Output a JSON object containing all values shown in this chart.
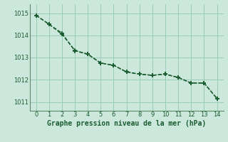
{
  "title": "Graphe pression niveau de la mer (hPa)",
  "background_color": "#cce8dc",
  "plot_bg_color": "#cce8dc",
  "grid_color": "#99ccb8",
  "line_color": "#1a5c30",
  "spine_color": "#5a8a6a",
  "xlim": [
    -0.5,
    14.5
  ],
  "ylim": [
    1010.6,
    1015.4
  ],
  "yticks": [
    1011,
    1012,
    1013,
    1014,
    1015
  ],
  "xticks": [
    0,
    1,
    2,
    3,
    4,
    5,
    6,
    7,
    8,
    9,
    10,
    11,
    12,
    13,
    14
  ],
  "series1_x": [
    0,
    1,
    2,
    3,
    4,
    5,
    6,
    7,
    8,
    9,
    10,
    11,
    12,
    13,
    14
  ],
  "series1_y": [
    1014.9,
    1014.5,
    1014.1,
    1013.3,
    1013.15,
    1012.75,
    1012.65,
    1012.35,
    1012.25,
    1012.2,
    1012.25,
    1012.1,
    1011.85,
    1011.85,
    1011.15
  ],
  "series2_x": [
    0,
    1,
    2,
    3,
    4,
    5,
    6,
    7,
    8,
    9,
    10,
    11,
    12,
    13,
    14
  ],
  "series2_y": [
    1014.9,
    1014.5,
    1014.05,
    1013.32,
    1013.15,
    1012.75,
    1012.65,
    1012.35,
    1012.25,
    1012.2,
    1012.25,
    1012.1,
    1011.85,
    1011.85,
    1011.15
  ],
  "marker": "+",
  "marker_size": 4,
  "line_width": 1.0,
  "tick_fontsize": 6,
  "xlabel_fontsize": 7
}
